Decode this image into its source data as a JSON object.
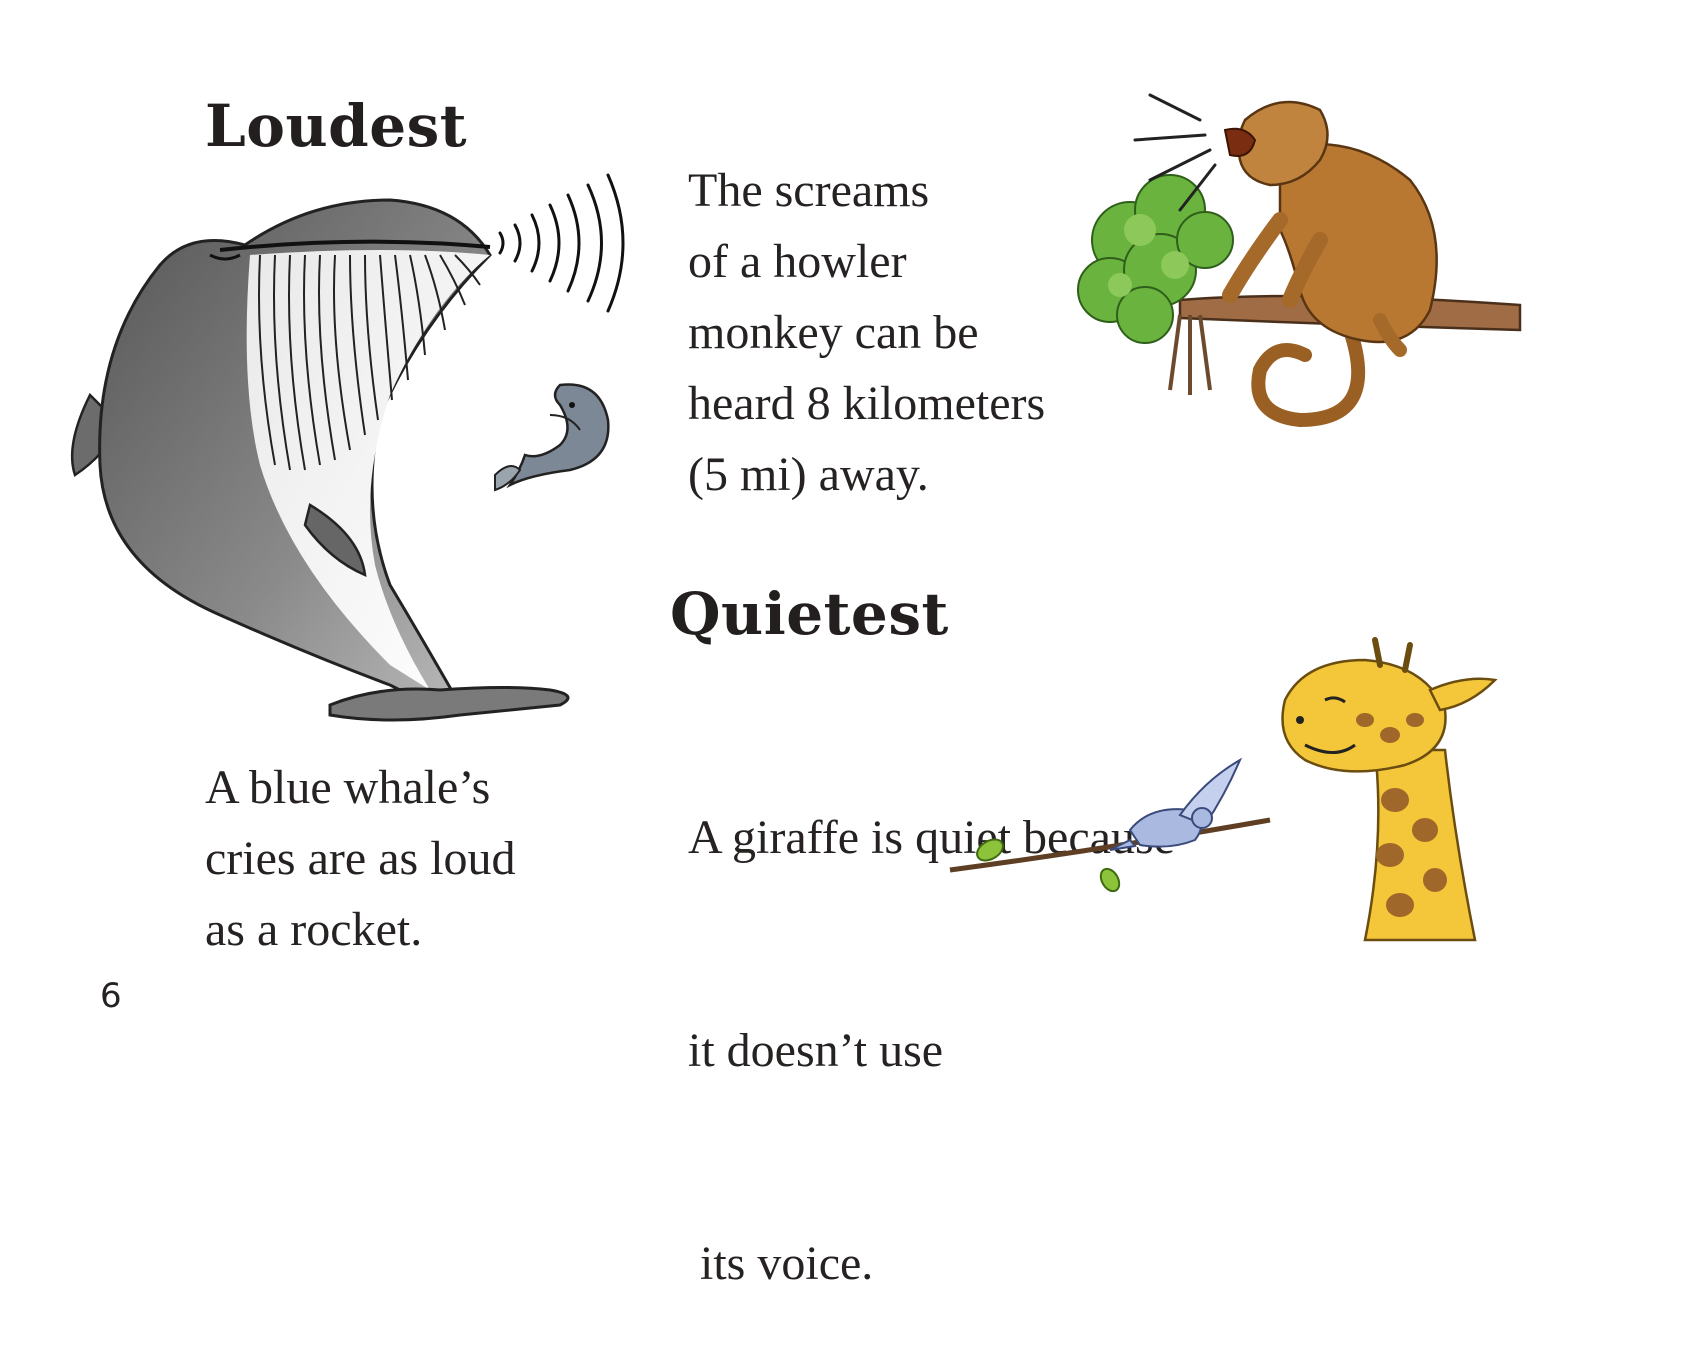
{
  "page_number": "6",
  "loudest": {
    "heading": "Loudest",
    "whale_caption": [
      "A blue whale’s",
      "cries are as loud",
      "as a rocket."
    ],
    "monkey_caption": [
      "The screams",
      "of a howler",
      "monkey can be",
      "heard 8 kilometers",
      "(5 mi) away."
    ]
  },
  "quietest": {
    "heading": "Quietest",
    "giraffe_caption": [
      "A giraffe is quiet because",
      "it doesn’t use",
      " its voice."
    ]
  },
  "illustrations": {
    "whale": "blue-whale-icon",
    "fish": "small-fish-icon",
    "monkey": "howler-monkey-icon",
    "bird": "bird-icon",
    "giraffe": "giraffe-icon"
  }
}
